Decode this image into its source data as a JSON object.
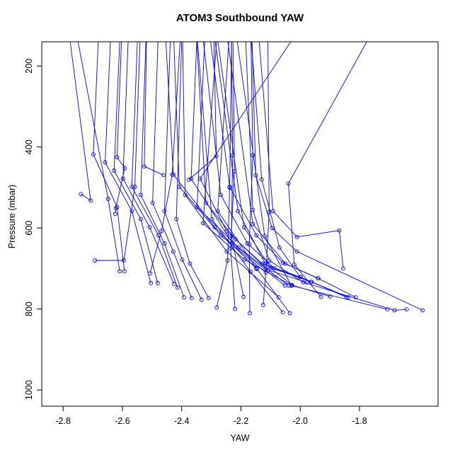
{
  "title": "ATOM3 Southbound YAW",
  "chart_data": {
    "type": "line",
    "title": "ATOM3 Southbound YAW",
    "xlabel": "YAW",
    "ylabel": "Pressure (mbar)",
    "xlim": [
      -2.872,
      -1.535
    ],
    "ylim": [
      1040,
      140
    ],
    "y_axis_reversed": true,
    "xticks": [
      -2.8,
      -2.6,
      -2.4,
      -2.2,
      -2.0,
      -1.8
    ],
    "yticks": [
      200,
      400,
      600,
      800,
      1000
    ],
    "grid": false,
    "legend": "none",
    "line_color": "#0000FF",
    "marker": "open-circle",
    "frame_color": "#000000",
    "series": [
      {
        "points": [
          [
            -1.587,
            803
          ],
          [
            -2.011,
            658
          ],
          [
            -2.095,
            600
          ],
          [
            -2.15,
            470
          ],
          [
            -2.165,
            75
          ]
        ]
      },
      {
        "points": [
          [
            -1.641,
            801
          ],
          [
            -1.682,
            803
          ],
          [
            -1.99,
            734
          ],
          [
            -2.105,
            680
          ],
          [
            -2.16,
            555
          ],
          [
            -2.185,
            115
          ]
        ]
      },
      {
        "points": [
          [
            -1.706,
            801
          ],
          [
            -2.03,
            742
          ],
          [
            -2.12,
            620
          ],
          [
            -2.22,
            100
          ]
        ]
      },
      {
        "points": [
          [
            -1.813,
            771
          ],
          [
            -1.94,
            724
          ],
          [
            -2.05,
            688
          ],
          [
            -2.16,
            590
          ],
          [
            -2.25,
            108
          ]
        ]
      },
      {
        "points": [
          [
            -1.837,
            771
          ],
          [
            -2.0,
            721
          ],
          [
            -2.07,
            648
          ],
          [
            -2.13,
            480
          ],
          [
            -2.17,
            88
          ]
        ]
      },
      {
        "points": [
          [
            -1.844,
            771
          ],
          [
            -1.962,
            733
          ],
          [
            -2.1,
            698
          ],
          [
            -2.19,
            598
          ],
          [
            -2.28,
            128
          ]
        ]
      },
      {
        "points": [
          [
            -1.899,
            769
          ],
          [
            -2.028,
            741
          ],
          [
            -2.118,
            688
          ],
          [
            -2.21,
            558
          ],
          [
            -2.3,
            68
          ]
        ]
      },
      {
        "points": [
          [
            -1.939,
            724
          ],
          [
            -2.058,
            686
          ],
          [
            -2.148,
            618
          ],
          [
            -2.238,
            498
          ],
          [
            -2.31,
            98
          ]
        ]
      },
      {
        "points": [
          [
            -1.963,
            733
          ],
          [
            -2.088,
            699
          ],
          [
            -2.178,
            638
          ],
          [
            -2.268,
            518
          ],
          [
            -2.33,
            118
          ]
        ]
      },
      {
        "points": [
          [
            -1.978,
            734
          ],
          [
            -2.108,
            704
          ],
          [
            -2.218,
            628
          ],
          [
            -2.318,
            538
          ],
          [
            -2.355,
            58
          ]
        ]
      },
      {
        "points": [
          [
            -1.999,
            721
          ],
          [
            -2.128,
            688
          ],
          [
            -2.248,
            608
          ],
          [
            -2.338,
            478
          ],
          [
            -1.985,
            88
          ]
        ]
      },
      {
        "points": [
          [
            -2.035,
            810
          ],
          [
            -2.148,
            699
          ],
          [
            -2.278,
            558
          ],
          [
            -2.238,
            108
          ]
        ]
      },
      {
        "points": [
          [
            -2.059,
            808
          ],
          [
            -2.168,
            708
          ],
          [
            -2.298,
            578
          ],
          [
            -2.348,
            128
          ]
        ]
      },
      {
        "points": [
          [
            -2.028,
            742
          ],
          [
            -2.188,
            678
          ],
          [
            -2.328,
            588
          ],
          [
            -2.278,
            98
          ]
        ]
      },
      {
        "points": [
          [
            -2.04,
            742
          ],
          [
            -2.208,
            648
          ],
          [
            -2.348,
            548
          ],
          [
            -2.318,
            68
          ]
        ]
      },
      {
        "points": [
          [
            -2.052,
            742
          ],
          [
            -2.228,
            638
          ],
          [
            -2.368,
            478
          ],
          [
            -2.348,
            118
          ]
        ]
      },
      {
        "points": [
          [
            -2.073,
            771
          ],
          [
            -2.248,
            658
          ],
          [
            -2.388,
            518
          ],
          [
            -2.398,
            88
          ]
        ]
      },
      {
        "points": [
          [
            -2.116,
            710
          ],
          [
            -2.268,
            618
          ],
          [
            -2.408,
            498
          ],
          [
            -2.428,
            108
          ]
        ]
      },
      {
        "points": [
          [
            -2.147,
            701
          ],
          [
            -2.288,
            598
          ],
          [
            -2.428,
            468
          ],
          [
            -2.458,
            78
          ]
        ]
      },
      {
        "points": [
          [
            -2.17,
            810
          ],
          [
            -2.172,
            640
          ],
          [
            -2.16,
            420
          ],
          [
            -2.168,
            55
          ]
        ]
      },
      {
        "points": [
          [
            -2.191,
            770
          ],
          [
            -2.232,
            620
          ],
          [
            -2.228,
            420
          ],
          [
            -2.233,
            60
          ]
        ]
      },
      {
        "points": [
          [
            -2.282,
            796
          ],
          [
            -2.245,
            680
          ],
          [
            -2.238,
            500
          ],
          [
            -2.23,
            65
          ]
        ]
      },
      {
        "points": [
          [
            -2.309,
            773
          ],
          [
            -2.372,
            688
          ],
          [
            -2.418,
            578
          ],
          [
            -2.398,
            92
          ]
        ]
      },
      {
        "points": [
          [
            -2.333,
            777
          ],
          [
            -2.398,
            678
          ],
          [
            -2.458,
            558
          ],
          [
            -2.438,
            128
          ]
        ]
      },
      {
        "points": [
          [
            -2.366,
            773
          ],
          [
            -2.428,
            658
          ],
          [
            -2.498,
            538
          ],
          [
            -2.478,
            98
          ]
        ]
      },
      {
        "points": [
          [
            -2.392,
            771
          ],
          [
            -2.458,
            638
          ],
          [
            -2.538,
            518
          ],
          [
            -2.518,
            78
          ]
        ]
      },
      {
        "points": [
          [
            -2.414,
            747
          ],
          [
            -2.478,
            618
          ],
          [
            -2.568,
            498
          ],
          [
            -2.548,
            112
          ]
        ]
      },
      {
        "points": [
          [
            -2.426,
            738
          ],
          [
            -2.508,
            598
          ],
          [
            -2.598,
            478
          ],
          [
            -2.578,
            88
          ]
        ]
      },
      {
        "points": [
          [
            -2.481,
            736
          ],
          [
            -2.538,
            578
          ],
          [
            -2.628,
            458
          ],
          [
            -2.608,
            122
          ]
        ]
      },
      {
        "points": [
          [
            -2.504,
            736
          ],
          [
            -2.568,
            558
          ],
          [
            -2.658,
            438
          ],
          [
            -2.638,
            98
          ]
        ]
      },
      {
        "points": [
          [
            -2.593,
            707
          ],
          [
            -2.618,
            548
          ],
          [
            -2.698,
            418
          ],
          [
            -2.678,
            78
          ]
        ]
      },
      {
        "points": [
          [
            -2.609,
            707
          ],
          [
            -2.648,
            528
          ],
          [
            -2.758,
            108
          ]
        ]
      },
      {
        "points": [
          [
            -2.693,
            680
          ],
          [
            -2.595,
            680
          ],
          [
            -2.558,
            498
          ],
          [
            -2.538,
            88
          ]
        ]
      },
      {
        "points": [
          [
            -2.507,
            712
          ],
          [
            -2.468,
            607
          ],
          [
            -2.432,
            468
          ],
          [
            -2.402,
            98
          ]
        ]
      },
      {
        "points": [
          [
            -2.624,
            565
          ],
          [
            -2.622,
            551
          ],
          [
            -2.592,
            452
          ],
          [
            -2.618,
            425
          ],
          [
            -2.602,
            118
          ]
        ]
      },
      {
        "points": [
          [
            -2.74,
            516
          ],
          [
            -2.707,
            532
          ],
          [
            -2.79,
            60
          ]
        ]
      },
      {
        "points": [
          [
            -1.93,
            770
          ],
          [
            -2.02,
            690
          ],
          [
            -2.04,
            490
          ],
          [
            -1.7,
            40
          ]
        ]
      },
      {
        "points": [
          [
            -1.855,
            700
          ],
          [
            -1.868,
            606
          ],
          [
            -2.011,
            622
          ],
          [
            -2.092,
            558
          ],
          [
            -2.142,
            108
          ]
        ]
      },
      {
        "points": [
          [
            -2.125,
            790
          ],
          [
            -2.115,
            700
          ],
          [
            -2.105,
            560
          ],
          [
            -2.11,
            48
          ]
        ]
      },
      {
        "points": [
          [
            -2.461,
            469
          ],
          [
            -2.526,
            448
          ],
          [
            -2.516,
            40
          ]
        ]
      },
      {
        "points": [
          [
            -2.376,
            481
          ],
          [
            -2.283,
            422
          ],
          [
            -2.293,
            70
          ]
        ]
      },
      {
        "points": [
          [
            -2.22,
            800
          ],
          [
            -2.235,
            650
          ],
          [
            -2.222,
            460
          ],
          [
            -2.228,
            45
          ]
        ]
      }
    ]
  }
}
